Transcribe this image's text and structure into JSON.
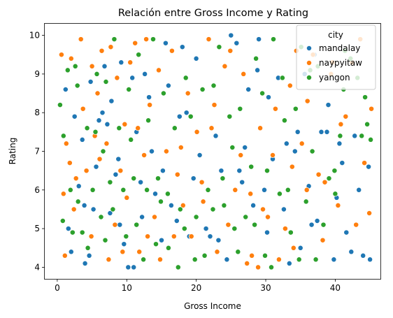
{
  "chart_data": {
    "type": "scatter",
    "title": "Relación entre Gross Income y Rating",
    "xlabel": "Gross Income",
    "ylabel": "Rating",
    "xlim": [
      -1.8,
      46.5
    ],
    "ylim": [
      3.7,
      10.3
    ],
    "xticks": [
      0,
      10,
      20,
      30,
      40
    ],
    "yticks": [
      4,
      5,
      6,
      7,
      8,
      9,
      10
    ],
    "grid": false,
    "legend": {
      "title": "city",
      "position": "top-right"
    },
    "series": [
      {
        "name": "mandalay",
        "color": "#1f77b4",
        "points": [
          [
            1.2,
            8.6
          ],
          [
            2.5,
            7.9
          ],
          [
            3.1,
            6.1
          ],
          [
            4.0,
            4.1
          ],
          [
            4.6,
            4.3
          ],
          [
            5.2,
            5.5
          ],
          [
            6.0,
            7.8
          ],
          [
            6.5,
            8.0
          ],
          [
            7.2,
            7.7
          ],
          [
            7.8,
            8.3
          ],
          [
            8.4,
            6.4
          ],
          [
            9.0,
            5.1
          ],
          [
            9.6,
            4.6
          ],
          [
            10.2,
            4.0
          ],
          [
            10.8,
            8.9
          ],
          [
            11.4,
            7.5
          ],
          [
            12.0,
            6.2
          ],
          [
            12.6,
            9.0
          ],
          [
            13.2,
            8.4
          ],
          [
            14.1,
            5.9
          ],
          [
            15.0,
            4.7
          ],
          [
            15.6,
            9.8
          ],
          [
            16.4,
            5.6
          ],
          [
            17.2,
            5.2
          ],
          [
            18.0,
            9.7
          ],
          [
            19.0,
            4.8
          ],
          [
            20.5,
            6.9
          ],
          [
            21.4,
            5.0
          ],
          [
            22.0,
            4.8
          ],
          [
            23.6,
            6.5
          ],
          [
            24.4,
            4.2
          ],
          [
            25.0,
            10.0
          ],
          [
            25.8,
            9.8
          ],
          [
            26.6,
            6.2
          ],
          [
            27.5,
            8.6
          ],
          [
            28.2,
            5.6
          ],
          [
            29.0,
            9.9
          ],
          [
            29.8,
            6.0
          ],
          [
            30.4,
            8.4
          ],
          [
            31.0,
            6.8
          ],
          [
            32.6,
            5.5
          ],
          [
            33.4,
            4.1
          ],
          [
            34.2,
            7.0
          ],
          [
            35.0,
            4.5
          ],
          [
            35.6,
            9.0
          ],
          [
            36.6,
            5.1
          ],
          [
            37.4,
            5.2
          ],
          [
            38.0,
            7.5
          ],
          [
            38.8,
            7.5
          ],
          [
            39.8,
            4.2
          ],
          [
            40.6,
            7.2
          ],
          [
            41.6,
            4.9
          ],
          [
            42.3,
            4.4
          ],
          [
            43.4,
            6.0
          ],
          [
            44.8,
            6.6
          ],
          [
            45.0,
            4.2
          ],
          [
            2.0,
            4.4
          ],
          [
            3.6,
            7.3
          ],
          [
            4.8,
            8.8
          ],
          [
            6.8,
            9.2
          ],
          [
            8.8,
            6.8
          ],
          [
            11.0,
            4.0
          ],
          [
            13.6,
            7.0
          ],
          [
            16.0,
            8.7
          ],
          [
            18.6,
            8.0
          ],
          [
            20.0,
            9.4
          ],
          [
            22.8,
            7.4
          ],
          [
            26.2,
            6.5
          ],
          [
            28.8,
            9.1
          ],
          [
            31.8,
            8.9
          ],
          [
            34.6,
            7.5
          ],
          [
            36.2,
            6.1
          ],
          [
            39.0,
            8.2
          ],
          [
            41.0,
            6.7
          ],
          [
            44.0,
            4.3
          ],
          [
            1.6,
            5.0
          ],
          [
            3.9,
            5.6
          ],
          [
            5.6,
            6.6
          ],
          [
            7.6,
            5.4
          ],
          [
            9.2,
            9.3
          ],
          [
            12.2,
            5.3
          ],
          [
            15.2,
            6.5
          ],
          [
            17.6,
            7.9
          ],
          [
            19.6,
            6.3
          ],
          [
            23.2,
            4.7
          ],
          [
            27.0,
            7.1
          ],
          [
            30.2,
            4.9
          ],
          [
            33.0,
            7.2
          ],
          [
            37.0,
            9.5
          ],
          [
            40.2,
            5.8
          ],
          [
            42.8,
            7.4
          ]
        ]
      },
      {
        "name": "naypyitaw",
        "color": "#ff7f0e",
        "points": [
          [
            0.6,
            9.5
          ],
          [
            0.9,
            5.9
          ],
          [
            1.3,
            7.2
          ],
          [
            2.0,
            9.4
          ],
          [
            2.7,
            6.3
          ],
          [
            3.4,
            9.9
          ],
          [
            4.2,
            6.5
          ],
          [
            5.0,
            9.2
          ],
          [
            5.8,
            8.5
          ],
          [
            6.4,
            9.6
          ],
          [
            7.1,
            7.2
          ],
          [
            7.7,
            9.7
          ],
          [
            8.3,
            5.1
          ],
          [
            9.1,
            6.5
          ],
          [
            9.7,
            7.7
          ],
          [
            10.5,
            9.3
          ],
          [
            11.2,
            9.8
          ],
          [
            11.8,
            4.4
          ],
          [
            12.5,
            6.9
          ],
          [
            13.3,
            8.2
          ],
          [
            14.0,
            5.3
          ],
          [
            14.8,
            4.2
          ],
          [
            15.7,
            7.0
          ],
          [
            16.5,
            9.6
          ],
          [
            17.3,
            6.4
          ],
          [
            18.1,
            5.6
          ],
          [
            19.3,
            4.8
          ],
          [
            20.1,
            7.5
          ],
          [
            21.0,
            5.7
          ],
          [
            22.2,
            7.6
          ],
          [
            23.0,
            4.4
          ],
          [
            24.1,
            9.2
          ],
          [
            24.9,
            9.6
          ],
          [
            25.6,
            6.0
          ],
          [
            26.4,
            6.9
          ],
          [
            27.3,
            4.1
          ],
          [
            28.0,
            4.3
          ],
          [
            28.9,
            4.0
          ],
          [
            29.6,
            5.5
          ],
          [
            30.3,
            5.3
          ],
          [
            31.0,
            6.9
          ],
          [
            31.9,
            4.2
          ],
          [
            32.8,
            5.0
          ],
          [
            33.5,
            8.7
          ],
          [
            34.4,
            9.6
          ],
          [
            35.2,
            7.2
          ],
          [
            35.9,
            6.0
          ],
          [
            36.8,
            9.5
          ],
          [
            37.6,
            6.4
          ],
          [
            38.5,
            6.2
          ],
          [
            39.4,
            9.0
          ],
          [
            40.8,
            7.7
          ],
          [
            41.5,
            7.9
          ],
          [
            42.4,
            9.3
          ],
          [
            43.6,
            9.9
          ],
          [
            44.2,
            6.7
          ],
          [
            44.9,
            5.4
          ],
          [
            45.2,
            8.1
          ],
          [
            1.1,
            4.3
          ],
          [
            2.4,
            5.5
          ],
          [
            3.7,
            8.1
          ],
          [
            4.9,
            4.8
          ],
          [
            6.1,
            6.8
          ],
          [
            7.4,
            4.2
          ],
          [
            8.6,
            8.9
          ],
          [
            10.0,
            5.8
          ],
          [
            11.6,
            7.6
          ],
          [
            13.0,
            4.8
          ],
          [
            14.6,
            9.1
          ],
          [
            16.8,
            4.8
          ],
          [
            18.8,
            8.5
          ],
          [
            20.8,
            6.2
          ],
          [
            22.6,
            8.2
          ],
          [
            24.6,
            5.1
          ],
          [
            26.8,
            9.0
          ],
          [
            29.2,
            7.6
          ],
          [
            31.4,
            8.1
          ],
          [
            33.8,
            6.6
          ],
          [
            36.0,
            8.3
          ],
          [
            38.2,
            4.7
          ],
          [
            40.4,
            5.6
          ],
          [
            43.0,
            5.1
          ],
          [
            1.8,
            6.7
          ],
          [
            5.4,
            7.4
          ],
          [
            9.4,
            4.4
          ],
          [
            12.8,
            9.9
          ],
          [
            17.8,
            7.1
          ],
          [
            21.8,
            9.9
          ],
          [
            27.8,
            5.9
          ],
          [
            34.0,
            4.5
          ],
          [
            39.6,
            9.3
          ]
        ]
      },
      {
        "name": "yangon",
        "color": "#2ca02c",
        "points": [
          [
            0.4,
            8.2
          ],
          [
            0.8,
            5.2
          ],
          [
            1.5,
            9.1
          ],
          [
            2.2,
            4.9
          ],
          [
            2.9,
            8.7
          ],
          [
            3.6,
            4.9
          ],
          [
            4.3,
            7.6
          ],
          [
            5.1,
            6.0
          ],
          [
            5.7,
            9.0
          ],
          [
            6.3,
            5.3
          ],
          [
            7.0,
            8.8
          ],
          [
            7.6,
            6.2
          ],
          [
            8.2,
            9.9
          ],
          [
            8.9,
            7.6
          ],
          [
            9.5,
            6.0
          ],
          [
            10.3,
            8.6
          ],
          [
            11.0,
            6.3
          ],
          [
            11.7,
            9.5
          ],
          [
            12.4,
            4.2
          ],
          [
            13.1,
            7.8
          ],
          [
            13.8,
            9.9
          ],
          [
            14.5,
            6.3
          ],
          [
            15.3,
            8.5
          ],
          [
            16.0,
            4.5
          ],
          [
            16.9,
            7.6
          ],
          [
            17.7,
            5.5
          ],
          [
            18.5,
            8.9
          ],
          [
            19.2,
            7.9
          ],
          [
            20.0,
            5.3
          ],
          [
            20.9,
            8.6
          ],
          [
            21.7,
            6.0
          ],
          [
            22.5,
            8.7
          ],
          [
            23.3,
            9.7
          ],
          [
            24.0,
            5.6
          ],
          [
            24.8,
            7.9
          ],
          [
            25.5,
            5.0
          ],
          [
            26.3,
            8.1
          ],
          [
            27.1,
            5.3
          ],
          [
            27.9,
            6.6
          ],
          [
            28.6,
            9.4
          ],
          [
            29.5,
            8.5
          ],
          [
            30.2,
            6.5
          ],
          [
            31.1,
            9.9
          ],
          [
            32.0,
            5.9
          ],
          [
            32.7,
            7.8
          ],
          [
            33.6,
            4.9
          ],
          [
            34.3,
            8.1
          ],
          [
            35.1,
            9.7
          ],
          [
            35.8,
            5.7
          ],
          [
            36.7,
            7.0
          ],
          [
            37.5,
            9.2
          ],
          [
            38.3,
            5.1
          ],
          [
            39.1,
            6.3
          ],
          [
            39.9,
            6.5
          ],
          [
            40.7,
            7.4
          ],
          [
            41.4,
            9.6
          ],
          [
            42.2,
            9.4
          ],
          [
            43.8,
            7.4
          ],
          [
            44.3,
            8.4
          ],
          [
            45.1,
            7.3
          ],
          [
            0.9,
            7.4
          ],
          [
            1.9,
            6.0
          ],
          [
            3.0,
            5.7
          ],
          [
            4.4,
            4.5
          ],
          [
            5.5,
            7.5
          ],
          [
            6.9,
            4.7
          ],
          [
            8.0,
            5.5
          ],
          [
            9.9,
            4.8
          ],
          [
            11.4,
            5.1
          ],
          [
            12.9,
            6.0
          ],
          [
            14.2,
            4.6
          ],
          [
            15.9,
            5.9
          ],
          [
            17.4,
            4.0
          ],
          [
            19.8,
            4.2
          ],
          [
            21.2,
            4.3
          ],
          [
            23.8,
            6.3
          ],
          [
            25.2,
            7.1
          ],
          [
            28.4,
            5.1
          ],
          [
            30.8,
            4.0
          ],
          [
            32.4,
            8.9
          ],
          [
            34.8,
            4.2
          ],
          [
            37.2,
            4.2
          ],
          [
            41.2,
            8.6
          ],
          [
            44.6,
            7.7
          ],
          [
            2.6,
            9.2
          ],
          [
            6.6,
            7.0
          ],
          [
            10.6,
            7.3
          ],
          [
            14.9,
            5.7
          ],
          [
            18.3,
            5.0
          ],
          [
            22.4,
            5.5
          ],
          [
            26.0,
            4.4
          ],
          [
            29.9,
            4.3
          ],
          [
            33.2,
            6.0
          ],
          [
            36.4,
            9.1
          ],
          [
            40.0,
            5.9
          ],
          [
            43.2,
            8.9
          ]
        ]
      }
    ]
  }
}
